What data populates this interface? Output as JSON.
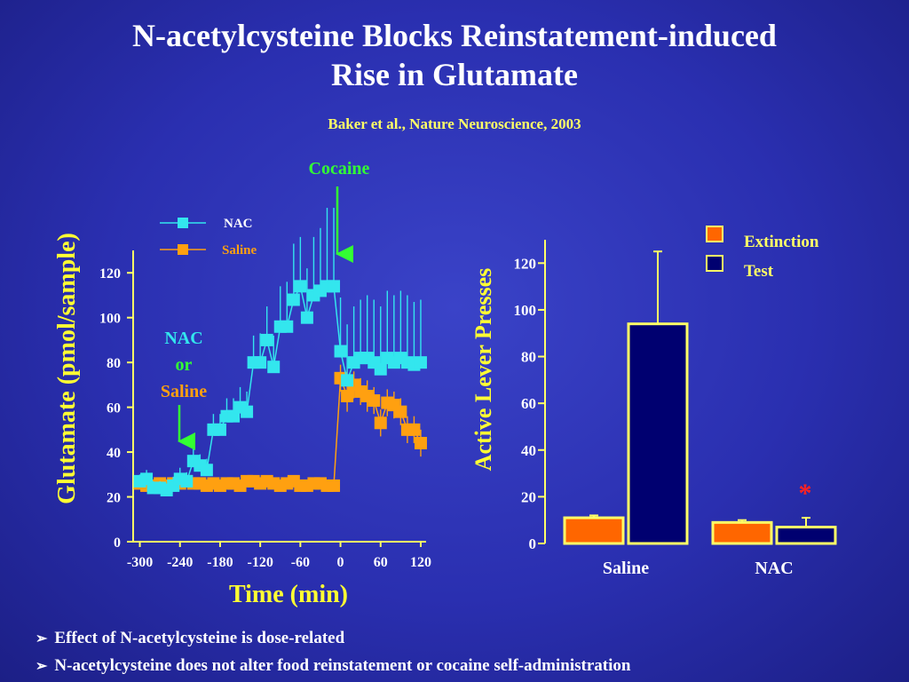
{
  "title_line1": "N-acetylcysteine Blocks Reinstatement-induced",
  "title_line2": "Rise in Glutamate",
  "citation": "Baker et al., Nature Neuroscience, 2003",
  "bullets": [
    "Effect of N-acetylcysteine is dose-related",
    "N-acetylcysteine does not alter food reinstatement or cocaine self-administration"
  ],
  "colors": {
    "nac": "#33e6ee",
    "saline": "#ffa010",
    "axis": "#ffff66",
    "annotation_green": "#33ff33",
    "extinction": "#ff6600",
    "test": "#000070",
    "bar_outline": "#ffff66",
    "star": "#ff2222"
  },
  "chart_data": [
    {
      "type": "line",
      "xlabel": "Time (min)",
      "ylabel": "Glutamate (pmol/sample)",
      "xlim": [
        -310,
        128
      ],
      "ylim": [
        0,
        130
      ],
      "xticks": [
        -300,
        -240,
        -180,
        -120,
        -60,
        0,
        60,
        120
      ],
      "yticks": [
        0,
        20,
        40,
        60,
        80,
        100,
        120
      ],
      "legend": "top-left",
      "annotations": [
        {
          "text": "Cocaine",
          "x": -5,
          "color": "green"
        },
        {
          "line1": "NAC",
          "line2": "or",
          "line3": "Saline",
          "x": -240
        }
      ],
      "series": [
        {
          "name": "NAC",
          "x": [
            -300,
            -290,
            -280,
            -270,
            -260,
            -250,
            -240,
            -230,
            -220,
            -210,
            -200,
            -190,
            -180,
            -170,
            -160,
            -150,
            -140,
            -130,
            -120,
            -110,
            -100,
            -90,
            -80,
            -70,
            -60,
            -50,
            -40,
            -30,
            -20,
            -10,
            0,
            10,
            20,
            30,
            40,
            50,
            60,
            70,
            80,
            90,
            100,
            110,
            120
          ],
          "y": [
            27,
            28,
            24,
            24,
            23,
            25,
            28,
            27,
            36,
            34,
            32,
            50,
            50,
            56,
            56,
            60,
            58,
            80,
            80,
            90,
            78,
            96,
            96,
            108,
            114,
            100,
            110,
            112,
            114,
            114,
            85,
            72,
            80,
            82,
            82,
            80,
            77,
            82,
            80,
            82,
            80,
            79,
            80
          ],
          "err": [
            3,
            4,
            3,
            3,
            3,
            4,
            5,
            4,
            6,
            5,
            5,
            7,
            7,
            8,
            8,
            9,
            9,
            12,
            13,
            15,
            14,
            18,
            20,
            25,
            22,
            22,
            26,
            28,
            35,
            35,
            24,
            25,
            25,
            26,
            28,
            28,
            28,
            30,
            30,
            30,
            30,
            28,
            28
          ]
        },
        {
          "name": "Saline",
          "x": [
            -300,
            -290,
            -280,
            -270,
            -260,
            -250,
            -240,
            -230,
            -220,
            -210,
            -200,
            -190,
            -180,
            -170,
            -160,
            -150,
            -140,
            -130,
            -120,
            -110,
            -100,
            -90,
            -80,
            -70,
            -60,
            -50,
            -40,
            -30,
            -20,
            -10,
            0,
            10,
            20,
            30,
            40,
            50,
            60,
            70,
            80,
            90,
            100,
            110,
            120
          ],
          "y": [
            26,
            25,
            25,
            26,
            25,
            26,
            26,
            27,
            26,
            26,
            25,
            26,
            25,
            26,
            26,
            25,
            27,
            27,
            26,
            27,
            26,
            25,
            26,
            27,
            25,
            25,
            26,
            26,
            25,
            25,
            73,
            65,
            70,
            67,
            65,
            63,
            53,
            62,
            61,
            58,
            50,
            50,
            44
          ],
          "err": [
            2,
            2,
            2,
            2,
            2,
            2,
            2,
            2,
            2,
            2,
            2,
            2,
            2,
            2,
            2,
            2,
            2,
            2,
            2,
            2,
            2,
            2,
            2,
            2,
            2,
            2,
            2,
            2,
            2,
            2,
            6,
            7,
            6,
            6,
            7,
            6,
            6,
            6,
            6,
            6,
            6,
            6,
            6
          ]
        }
      ]
    },
    {
      "type": "bar",
      "ylabel": "Active Lever Presses",
      "categories": [
        "Saline",
        "NAC"
      ],
      "ylim": [
        0,
        130
      ],
      "yticks": [
        0,
        20,
        40,
        60,
        80,
        100,
        120
      ],
      "legend": "top-right",
      "series": [
        {
          "name": "Extinction",
          "values": [
            11,
            9
          ],
          "err": [
            1,
            1
          ]
        },
        {
          "name": "Test",
          "values": [
            94,
            7
          ],
          "err": [
            31,
            4
          ]
        }
      ],
      "significance": {
        "category": "NAC",
        "symbol": "*"
      }
    }
  ]
}
